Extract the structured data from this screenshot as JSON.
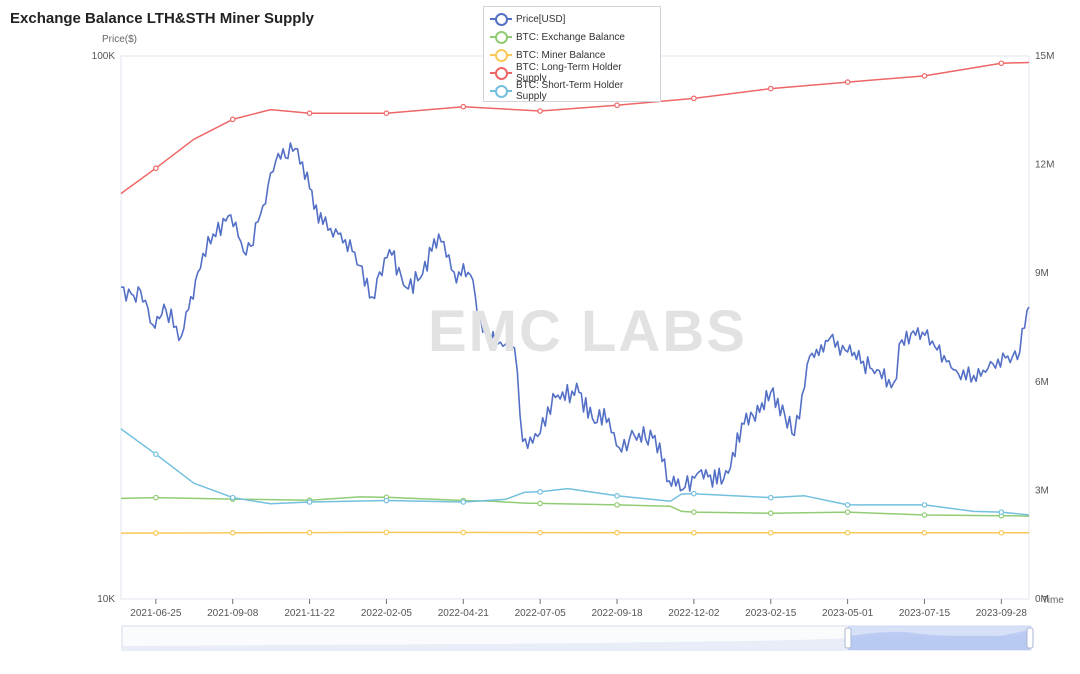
{
  "title": "Exchange Balance LTH&STH Miner Supply",
  "watermark": "EMC LABS",
  "colors": {
    "price": "#5470c6",
    "exchange": "#91cc75",
    "miner": "#fac858",
    "lth": "#ee6666",
    "sth": "#73c0de"
  },
  "chart_data": {
    "type": "line",
    "title": "Exchange Balance LTH&STH Miner Supply",
    "left_axis": {
      "name": "Price($)",
      "scale": "log",
      "range": [
        10000,
        100000
      ],
      "ticks": [
        "100K",
        "10K"
      ]
    },
    "right_axis": {
      "range": [
        0,
        15000000
      ],
      "ticks": [
        "15M",
        "12M",
        "9M",
        "6M",
        "3M",
        "0M"
      ]
    },
    "x_axis": {
      "name": "Time",
      "range": [
        "2021-05-22",
        "2023-10-25"
      ],
      "ticks": [
        "2021-06-25",
        "2021-09-08",
        "2021-11-22",
        "2022-02-05",
        "2022-04-21",
        "2022-07-05",
        "2022-09-18",
        "2022-12-02",
        "2023-02-15",
        "2023-05-01",
        "2023-07-15",
        "2023-09-28"
      ]
    },
    "legend": [
      "Price[USD]",
      "BTC: Exchange Balance",
      "BTC: Miner Balance",
      "BTC: Long-Term Holder Supply",
      "BTC: Short-Term Holder Supply"
    ],
    "legend_position": "top-center",
    "series": [
      {
        "name": "Price[USD]",
        "axis": "left",
        "color_key": "price",
        "data": [
          [
            "2021-05-22",
            37500
          ],
          [
            "2021-06-01",
            36500
          ],
          [
            "2021-06-10",
            37000
          ],
          [
            "2021-06-22",
            32000
          ],
          [
            "2021-07-05",
            34000
          ],
          [
            "2021-07-20",
            30500
          ],
          [
            "2021-08-05",
            40000
          ],
          [
            "2021-08-20",
            47000
          ],
          [
            "2021-09-06",
            51000
          ],
          [
            "2021-09-21",
            43000
          ],
          [
            "2021-10-05",
            51000
          ],
          [
            "2021-10-20",
            64000
          ],
          [
            "2021-11-08",
            67500
          ],
          [
            "2021-11-22",
            57000
          ],
          [
            "2021-12-05",
            49000
          ],
          [
            "2021-12-20",
            47000
          ],
          [
            "2022-01-05",
            43500
          ],
          [
            "2022-01-22",
            36000
          ],
          [
            "2022-02-08",
            44000
          ],
          [
            "2022-02-24",
            37500
          ],
          [
            "2022-03-10",
            39000
          ],
          [
            "2022-03-28",
            47000
          ],
          [
            "2022-04-12",
            40000
          ],
          [
            "2022-04-28",
            39500
          ],
          [
            "2022-05-10",
            31000
          ],
          [
            "2022-05-25",
            29500
          ],
          [
            "2022-06-10",
            29000
          ],
          [
            "2022-06-18",
            19500
          ],
          [
            "2022-07-05",
            20200
          ],
          [
            "2022-07-20",
            23500
          ],
          [
            "2022-08-12",
            24000
          ],
          [
            "2022-08-25",
            21500
          ],
          [
            "2022-09-10",
            21500
          ],
          [
            "2022-09-20",
            19000
          ],
          [
            "2022-10-05",
            20000
          ],
          [
            "2022-10-25",
            20000
          ],
          [
            "2022-11-08",
            16500
          ],
          [
            "2022-11-21",
            15900
          ],
          [
            "2022-12-05",
            17000
          ],
          [
            "2022-12-31",
            16600
          ],
          [
            "2023-01-20",
            21000
          ],
          [
            "2023-02-15",
            24000
          ],
          [
            "2023-03-10",
            20000
          ],
          [
            "2023-03-25",
            28000
          ],
          [
            "2023-04-14",
            30300
          ],
          [
            "2023-05-01",
            28500
          ],
          [
            "2023-05-25",
            26500
          ],
          [
            "2023-06-15",
            25000
          ],
          [
            "2023-06-23",
            30000
          ],
          [
            "2023-07-13",
            31000
          ],
          [
            "2023-07-25",
            29200
          ],
          [
            "2023-08-17",
            26000
          ],
          [
            "2023-09-01",
            25800
          ],
          [
            "2023-09-15",
            26600
          ],
          [
            "2023-10-02",
            27800
          ],
          [
            "2023-10-16",
            28500
          ],
          [
            "2023-10-23",
            34000
          ],
          [
            "2023-10-25",
            34500
          ]
        ]
      },
      {
        "name": "BTC: Exchange Balance",
        "axis": "right",
        "color_key": "exchange",
        "data": [
          [
            "2021-05-22",
            2780000
          ],
          [
            "2021-06-25",
            2800000
          ],
          [
            "2021-09-08",
            2760000
          ],
          [
            "2021-11-22",
            2730000
          ],
          [
            "2022-01-10",
            2820000
          ],
          [
            "2022-02-05",
            2810000
          ],
          [
            "2022-04-21",
            2720000
          ],
          [
            "2022-05-20",
            2700000
          ],
          [
            "2022-06-20",
            2650000
          ],
          [
            "2022-07-05",
            2640000
          ],
          [
            "2022-09-18",
            2600000
          ],
          [
            "2022-11-09",
            2560000
          ],
          [
            "2022-11-20",
            2420000
          ],
          [
            "2022-12-02",
            2400000
          ],
          [
            "2023-02-15",
            2370000
          ],
          [
            "2023-05-01",
            2400000
          ],
          [
            "2023-07-15",
            2320000
          ],
          [
            "2023-09-28",
            2300000
          ],
          [
            "2023-10-25",
            2290000
          ]
        ]
      },
      {
        "name": "BTC: Miner Balance",
        "axis": "right",
        "color_key": "miner",
        "data": [
          [
            "2021-05-22",
            1820000
          ],
          [
            "2022-02-05",
            1840000
          ],
          [
            "2022-12-02",
            1830000
          ],
          [
            "2023-10-25",
            1830000
          ]
        ]
      },
      {
        "name": "BTC: Long-Term Holder Supply",
        "axis": "right",
        "color_key": "lth",
        "data": [
          [
            "2021-05-22",
            11200000
          ],
          [
            "2021-06-25",
            11900000
          ],
          [
            "2021-08-01",
            12700000
          ],
          [
            "2021-09-08",
            13250000
          ],
          [
            "2021-10-15",
            13520000
          ],
          [
            "2021-11-22",
            13420000
          ],
          [
            "2022-02-05",
            13420000
          ],
          [
            "2022-04-21",
            13600000
          ],
          [
            "2022-07-05",
            13480000
          ],
          [
            "2022-09-18",
            13640000
          ],
          [
            "2022-12-02",
            13830000
          ],
          [
            "2023-02-15",
            14100000
          ],
          [
            "2023-05-01",
            14280000
          ],
          [
            "2023-07-15",
            14450000
          ],
          [
            "2023-09-28",
            14800000
          ],
          [
            "2023-10-25",
            14820000
          ]
        ]
      },
      {
        "name": "BTC: Short-Term Holder Supply",
        "axis": "right",
        "color_key": "sth",
        "data": [
          [
            "2021-05-22",
            4700000
          ],
          [
            "2021-06-25",
            4000000
          ],
          [
            "2021-08-01",
            3200000
          ],
          [
            "2021-09-08",
            2800000
          ],
          [
            "2021-10-15",
            2630000
          ],
          [
            "2021-11-22",
            2680000
          ],
          [
            "2022-02-05",
            2720000
          ],
          [
            "2022-04-21",
            2680000
          ],
          [
            "2022-06-01",
            2750000
          ],
          [
            "2022-06-20",
            2950000
          ],
          [
            "2022-07-05",
            2960000
          ],
          [
            "2022-08-01",
            3050000
          ],
          [
            "2022-09-18",
            2850000
          ],
          [
            "2022-11-09",
            2700000
          ],
          [
            "2022-11-20",
            2900000
          ],
          [
            "2022-12-02",
            2910000
          ],
          [
            "2023-02-15",
            2800000
          ],
          [
            "2023-03-20",
            2850000
          ],
          [
            "2023-05-01",
            2600000
          ],
          [
            "2023-07-15",
            2600000
          ],
          [
            "2023-09-01",
            2420000
          ],
          [
            "2023-09-28",
            2400000
          ],
          [
            "2023-10-25",
            2320000
          ]
        ]
      }
    ]
  }
}
